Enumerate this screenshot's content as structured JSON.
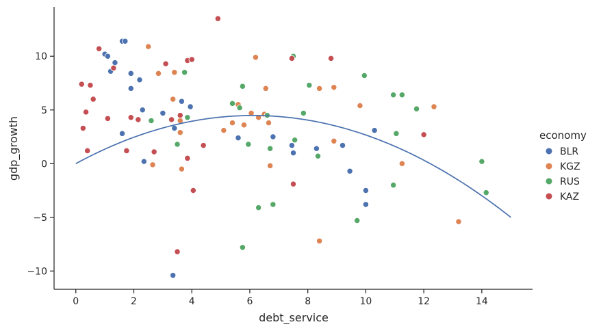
{
  "chart_data": {
    "type": "scatter",
    "xlabel": "debt_service",
    "ylabel": "gdp_growth",
    "xlim": [
      -0.75,
      15.75
    ],
    "ylim": [
      -11.7,
      14.6
    ],
    "x_ticks": [
      0,
      2,
      4,
      6,
      8,
      10,
      12,
      14
    ],
    "y_ticks": [
      -10,
      -5,
      0,
      5,
      10
    ],
    "grid": false,
    "legend": {
      "title": "economy",
      "placement": "right",
      "entries": [
        "BLR",
        "KGZ",
        "RUS",
        "KAZ"
      ]
    },
    "colors": {
      "BLR": "#4c72b0",
      "KGZ": "#dd8452",
      "RUS": "#55a868",
      "KAZ": "#c44e52",
      "trend": "#4c72b0"
    },
    "series": [
      {
        "name": "BLR",
        "points": [
          [
            1.0,
            10.2
          ],
          [
            1.1,
            10.0
          ],
          [
            1.2,
            8.6
          ],
          [
            1.35,
            9.4
          ],
          [
            1.6,
            11.4
          ],
          [
            1.7,
            11.4
          ],
          [
            1.9,
            8.4
          ],
          [
            1.9,
            7.0
          ],
          [
            2.2,
            7.8
          ],
          [
            2.3,
            5.0
          ],
          [
            3.0,
            4.7
          ],
          [
            3.65,
            5.8
          ],
          [
            3.95,
            5.3
          ],
          [
            1.6,
            2.8
          ],
          [
            2.35,
            0.2
          ],
          [
            3.4,
            3.3
          ],
          [
            5.6,
            2.4
          ],
          [
            6.8,
            2.5
          ],
          [
            7.45,
            1.7
          ],
          [
            7.5,
            1.0
          ],
          [
            8.3,
            1.4
          ],
          [
            9.2,
            1.7
          ],
          [
            9.45,
            -0.7
          ],
          [
            10.0,
            -2.5
          ],
          [
            10.0,
            -3.8
          ],
          [
            10.3,
            3.1
          ],
          [
            3.35,
            -10.4
          ]
        ]
      },
      {
        "name": "KGZ",
        "points": [
          [
            2.5,
            10.9
          ],
          [
            2.85,
            8.4
          ],
          [
            3.4,
            8.5
          ],
          [
            3.35,
            6.0
          ],
          [
            3.6,
            4.0
          ],
          [
            3.6,
            2.9
          ],
          [
            3.65,
            -0.5
          ],
          [
            2.65,
            -0.1
          ],
          [
            5.1,
            3.1
          ],
          [
            5.4,
            3.8
          ],
          [
            5.6,
            5.5
          ],
          [
            5.8,
            3.6
          ],
          [
            6.05,
            4.7
          ],
          [
            6.2,
            9.9
          ],
          [
            6.3,
            4.3
          ],
          [
            6.5,
            4.6
          ],
          [
            6.55,
            7.0
          ],
          [
            6.65,
            3.8
          ],
          [
            6.7,
            -0.2
          ],
          [
            8.4,
            7.0
          ],
          [
            8.9,
            7.1
          ],
          [
            8.9,
            2.1
          ],
          [
            9.8,
            5.4
          ],
          [
            11.25,
            0.0
          ],
          [
            12.35,
            5.3
          ],
          [
            13.2,
            -5.4
          ],
          [
            8.4,
            -7.2
          ]
        ]
      },
      {
        "name": "RUS",
        "points": [
          [
            2.6,
            4.0
          ],
          [
            3.5,
            1.8
          ],
          [
            3.75,
            8.5
          ],
          [
            3.85,
            4.3
          ],
          [
            5.4,
            5.6
          ],
          [
            5.65,
            5.2
          ],
          [
            5.75,
            7.2
          ],
          [
            5.95,
            1.8
          ],
          [
            5.75,
            -7.8
          ],
          [
            6.3,
            -4.1
          ],
          [
            6.6,
            4.5
          ],
          [
            6.7,
            1.4
          ],
          [
            6.8,
            -3.8
          ],
          [
            7.5,
            10.0
          ],
          [
            7.55,
            2.2
          ],
          [
            7.85,
            4.7
          ],
          [
            8.05,
            7.3
          ],
          [
            8.35,
            0.7
          ],
          [
            9.7,
            -5.3
          ],
          [
            9.95,
            8.2
          ],
          [
            10.95,
            6.4
          ],
          [
            11.25,
            6.4
          ],
          [
            11.05,
            2.8
          ],
          [
            10.95,
            -2.0
          ],
          [
            11.75,
            5.1
          ],
          [
            14.0,
            0.2
          ],
          [
            14.15,
            -2.7
          ]
        ]
      },
      {
        "name": "KAZ",
        "points": [
          [
            0.2,
            7.4
          ],
          [
            0.5,
            7.3
          ],
          [
            0.6,
            6.0
          ],
          [
            0.8,
            10.7
          ],
          [
            1.3,
            8.9
          ],
          [
            0.35,
            4.8
          ],
          [
            0.25,
            3.3
          ],
          [
            0.4,
            1.2
          ],
          [
            1.1,
            4.2
          ],
          [
            1.75,
            1.2
          ],
          [
            1.9,
            4.3
          ],
          [
            2.15,
            4.1
          ],
          [
            2.7,
            1.1
          ],
          [
            3.1,
            9.3
          ],
          [
            3.3,
            4.1
          ],
          [
            3.6,
            4.5
          ],
          [
            3.85,
            0.5
          ],
          [
            3.85,
            9.6
          ],
          [
            4.0,
            9.7
          ],
          [
            4.05,
            -2.5
          ],
          [
            4.4,
            1.7
          ],
          [
            3.5,
            -8.2
          ],
          [
            4.9,
            13.5
          ],
          [
            7.45,
            9.8
          ],
          [
            7.5,
            -1.9
          ],
          [
            8.8,
            9.8
          ],
          [
            12.0,
            2.7
          ]
        ]
      }
    ],
    "trendline": {
      "type": "quadratic",
      "coefficients": [
        0,
        1.4667,
        -0.12
      ],
      "x_range": [
        0,
        15
      ]
    }
  }
}
